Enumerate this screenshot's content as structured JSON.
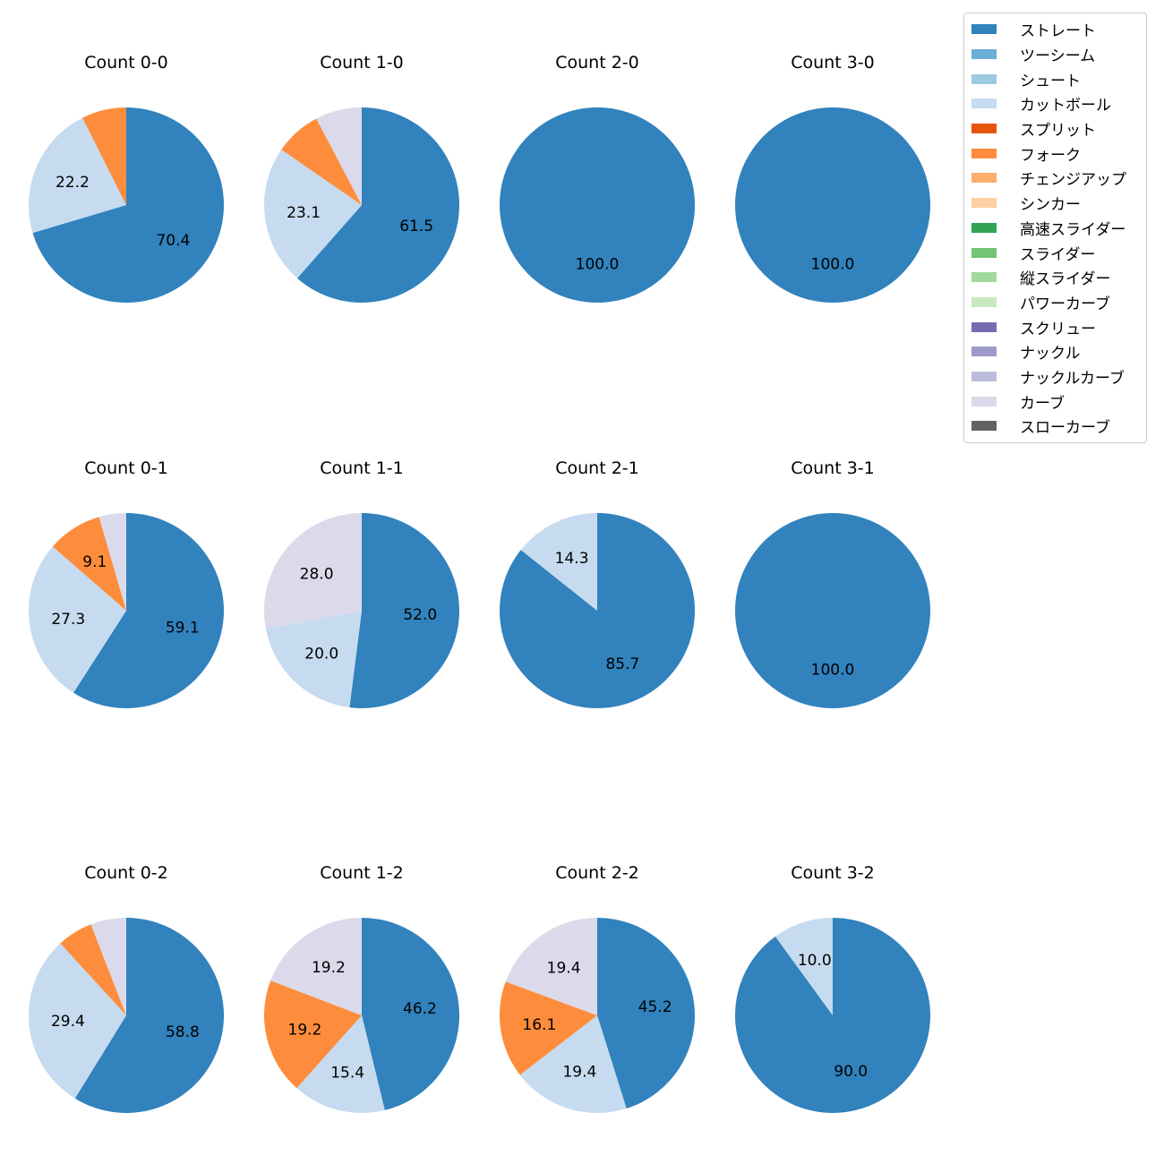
{
  "legend": {
    "items": [
      {
        "label": "ストレート",
        "color": "#3182bd"
      },
      {
        "label": "ツーシーム",
        "color": "#6baed6"
      },
      {
        "label": "シュート",
        "color": "#9ecae1"
      },
      {
        "label": "カットボール",
        "color": "#c6dbef"
      },
      {
        "label": "スプリット",
        "color": "#e6550d"
      },
      {
        "label": "フォーク",
        "color": "#fd8d3c"
      },
      {
        "label": "チェンジアップ",
        "color": "#fdae6b"
      },
      {
        "label": "シンカー",
        "color": "#fdd0a2"
      },
      {
        "label": "高速スライダー",
        "color": "#31a354"
      },
      {
        "label": "スライダー",
        "color": "#74c476"
      },
      {
        "label": "縦スライダー",
        "color": "#a1d99b"
      },
      {
        "label": "パワーカーブ",
        "color": "#c7e9c0"
      },
      {
        "label": "スクリュー",
        "color": "#756bb1"
      },
      {
        "label": "ナックル",
        "color": "#9e9ac8"
      },
      {
        "label": "ナックルカーブ",
        "color": "#bcbddc"
      },
      {
        "label": "カーブ",
        "color": "#dadaeb"
      },
      {
        "label": "スローカーブ",
        "color": "#636363"
      }
    ]
  },
  "chart_data": [
    {
      "type": "pie",
      "title": "Count 0-0",
      "slices": [
        {
          "name": "ストレート",
          "value": 70.4,
          "label": "70.4"
        },
        {
          "name": "カットボール",
          "value": 22.2,
          "label": "22.2"
        },
        {
          "name": "フォーク",
          "value": 7.4,
          "label": ""
        }
      ]
    },
    {
      "type": "pie",
      "title": "Count 1-0",
      "slices": [
        {
          "name": "ストレート",
          "value": 61.5,
          "label": "61.5"
        },
        {
          "name": "カットボール",
          "value": 23.1,
          "label": "23.1"
        },
        {
          "name": "フォーク",
          "value": 7.7,
          "label": ""
        },
        {
          "name": "カーブ",
          "value": 7.7,
          "label": ""
        }
      ]
    },
    {
      "type": "pie",
      "title": "Count 2-0",
      "slices": [
        {
          "name": "ストレート",
          "value": 100.0,
          "label": "100.0"
        }
      ]
    },
    {
      "type": "pie",
      "title": "Count 3-0",
      "slices": [
        {
          "name": "ストレート",
          "value": 100.0,
          "label": "100.0"
        }
      ]
    },
    {
      "type": "pie",
      "title": "Count 0-1",
      "slices": [
        {
          "name": "ストレート",
          "value": 59.1,
          "label": "59.1"
        },
        {
          "name": "カットボール",
          "value": 27.3,
          "label": "27.3"
        },
        {
          "name": "フォーク",
          "value": 9.1,
          "label": "9.1"
        },
        {
          "name": "カーブ",
          "value": 4.5,
          "label": ""
        }
      ]
    },
    {
      "type": "pie",
      "title": "Count 1-1",
      "slices": [
        {
          "name": "ストレート",
          "value": 52.0,
          "label": "52.0"
        },
        {
          "name": "カットボール",
          "value": 20.0,
          "label": "20.0"
        },
        {
          "name": "カーブ",
          "value": 28.0,
          "label": "28.0"
        }
      ]
    },
    {
      "type": "pie",
      "title": "Count 2-1",
      "slices": [
        {
          "name": "ストレート",
          "value": 85.7,
          "label": "85.7"
        },
        {
          "name": "カットボール",
          "value": 14.3,
          "label": "14.3"
        }
      ]
    },
    {
      "type": "pie",
      "title": "Count 3-1",
      "slices": [
        {
          "name": "ストレート",
          "value": 100.0,
          "label": "100.0"
        }
      ]
    },
    {
      "type": "pie",
      "title": "Count 0-2",
      "slices": [
        {
          "name": "ストレート",
          "value": 58.8,
          "label": "58.8"
        },
        {
          "name": "カットボール",
          "value": 29.4,
          "label": "29.4"
        },
        {
          "name": "フォーク",
          "value": 5.9,
          "label": ""
        },
        {
          "name": "カーブ",
          "value": 5.9,
          "label": ""
        }
      ]
    },
    {
      "type": "pie",
      "title": "Count 1-2",
      "slices": [
        {
          "name": "ストレート",
          "value": 46.2,
          "label": "46.2"
        },
        {
          "name": "カットボール",
          "value": 15.4,
          "label": "15.4"
        },
        {
          "name": "フォーク",
          "value": 19.2,
          "label": "19.2"
        },
        {
          "name": "カーブ",
          "value": 19.2,
          "label": "19.2"
        }
      ]
    },
    {
      "type": "pie",
      "title": "Count 2-2",
      "slices": [
        {
          "name": "ストレート",
          "value": 45.2,
          "label": "45.2"
        },
        {
          "name": "カットボール",
          "value": 19.4,
          "label": "19.4"
        },
        {
          "name": "フォーク",
          "value": 16.1,
          "label": "16.1"
        },
        {
          "name": "カーブ",
          "value": 19.4,
          "label": "19.4"
        }
      ]
    },
    {
      "type": "pie",
      "title": "Count 3-2",
      "slices": [
        {
          "name": "ストレート",
          "value": 90.0,
          "label": "90.0"
        },
        {
          "name": "カットボール",
          "value": 10.0,
          "label": "10.0"
        }
      ]
    }
  ]
}
